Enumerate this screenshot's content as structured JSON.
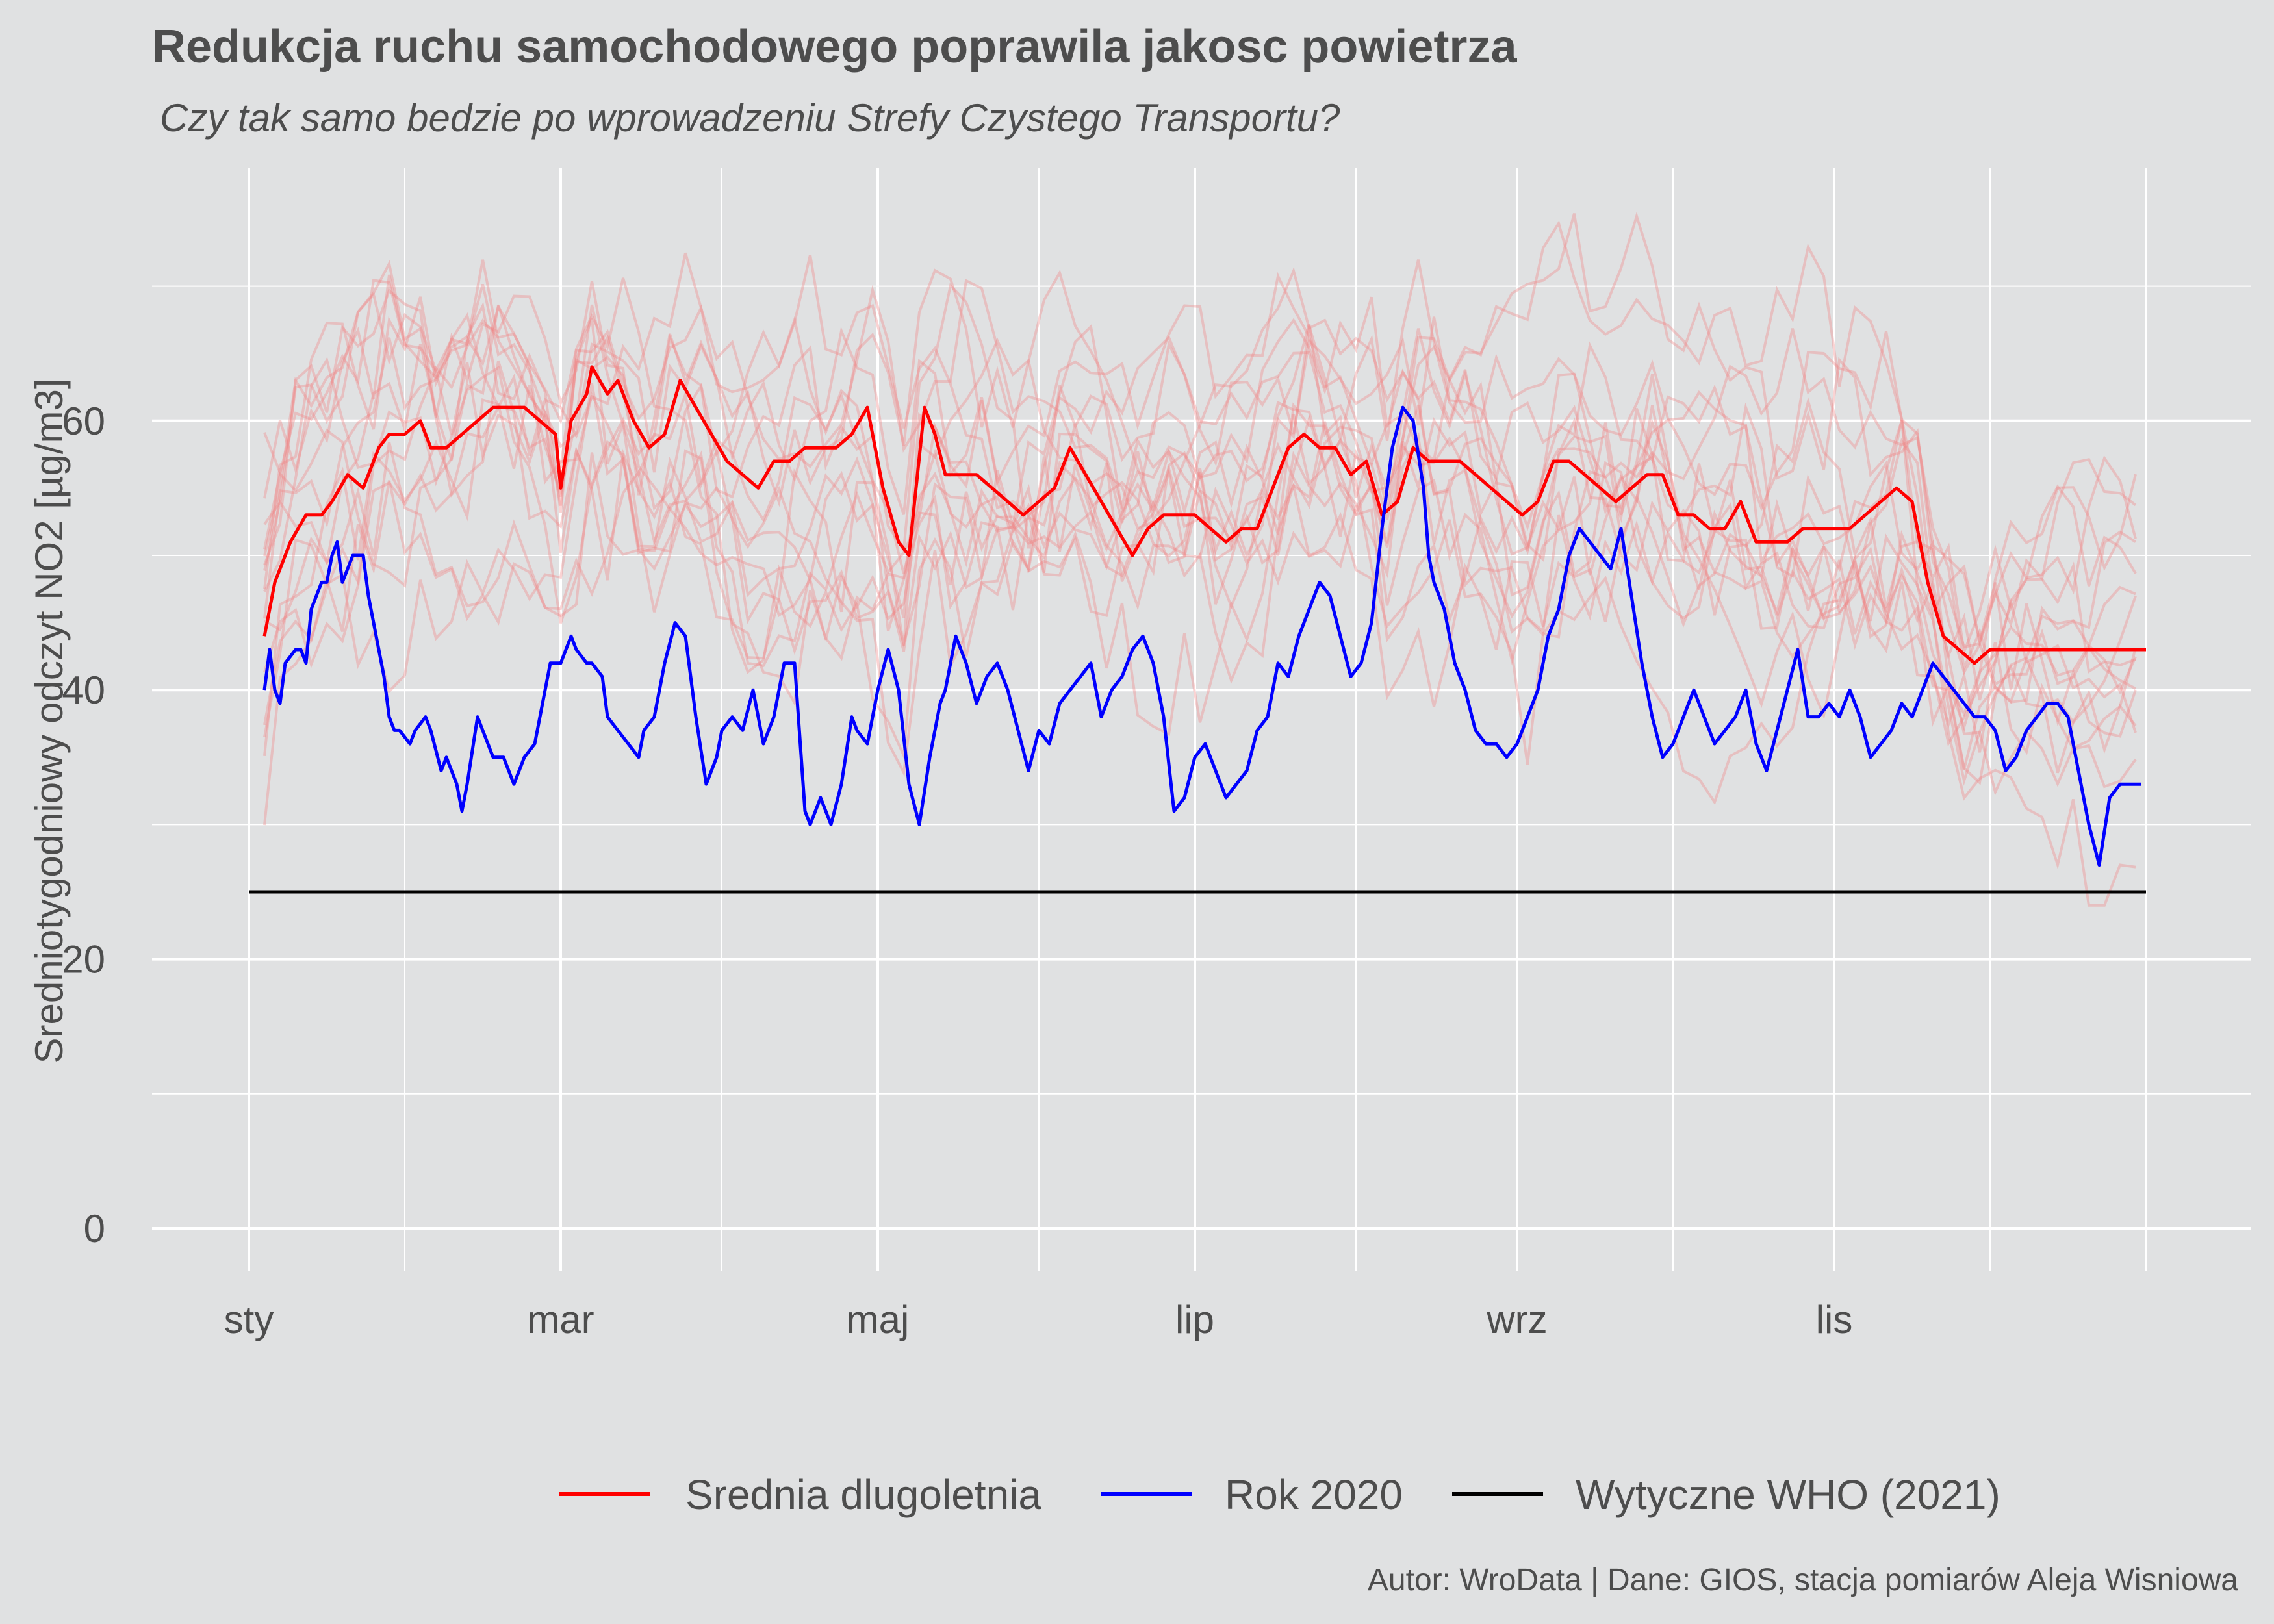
{
  "chart_data": {
    "type": "line",
    "title": "Redukcja ruchu samochodowego poprawila jakosc powietrza",
    "subtitle": "Czy tak samo bedzie po wprowadzeniu Strefy Czystego Transportu?",
    "ylabel": "Sredniotygodniowy odczyt NO2 [µg/m3]",
    "xlabel": "",
    "caption": "Autor: WroData | Dane: GIOS, stacja pomiarów Aleja Wisniowa",
    "x_unit": "day of year",
    "xlim": [
      1,
      366
    ],
    "ylim": [
      -3,
      79
    ],
    "y_ticks": [
      0,
      20,
      40,
      60
    ],
    "x_tick_labels": [
      {
        "label": "sty",
        "day": 1
      },
      {
        "label": "mar",
        "day": 61
      },
      {
        "label": "maj",
        "day": 122
      },
      {
        "label": "lip",
        "day": 183
      },
      {
        "label": "wrz",
        "day": 245
      },
      {
        "label": "lis",
        "day": 306
      }
    ],
    "grid": true,
    "legend_position": "bottom",
    "legend": [
      "Srednia dlugoletnia",
      "Rok 2020",
      "Wytyczne WHO (2021)"
    ],
    "colors": {
      "background": "#e0e1e2",
      "grid": "#ffffff",
      "mean": "#ff0000",
      "year2020": "#0000ff",
      "who": "#000000",
      "years": "#f08080"
    },
    "series": [
      {
        "name": "Srednia dlugoletnia",
        "color": "#ff0000",
        "x": [
          4,
          6,
          9,
          12,
          15,
          17,
          20,
          23,
          26,
          28,
          31,
          34,
          36,
          39,
          42,
          45,
          48,
          51,
          54,
          57,
          60,
          61,
          63,
          66,
          67,
          70,
          72,
          75,
          78,
          81,
          84,
          87,
          90,
          93,
          96,
          99,
          102,
          105,
          108,
          111,
          114,
          117,
          120,
          123,
          126,
          128,
          131,
          133,
          135,
          138,
          141,
          144,
          147,
          150,
          153,
          156,
          159,
          162,
          165,
          168,
          171,
          174,
          177,
          180,
          183,
          186,
          189,
          192,
          195,
          198,
          201,
          204,
          207,
          210,
          213,
          216,
          219,
          222,
          225,
          228,
          231,
          234,
          237,
          240,
          243,
          246,
          249,
          252,
          255,
          258,
          261,
          264,
          267,
          270,
          273,
          276,
          279,
          282,
          285,
          288,
          291,
          294,
          297,
          300,
          303,
          306,
          309,
          312,
          315,
          318,
          321,
          324,
          327,
          330,
          333,
          336,
          339,
          342,
          345,
          348,
          351,
          354,
          357,
          360,
          363,
          366
        ],
        "values": [
          44,
          48,
          51,
          53,
          53,
          54,
          56,
          55,
          58,
          59,
          59,
          60,
          58,
          58,
          59,
          60,
          61,
          61,
          61,
          60,
          59,
          55,
          60,
          62,
          64,
          62,
          63,
          60,
          58,
          59,
          63,
          61,
          59,
          57,
          56,
          55,
          57,
          57,
          58,
          58,
          58,
          59,
          61,
          55,
          51,
          50,
          61,
          59,
          56,
          56,
          56,
          55,
          54,
          53,
          54,
          55,
          58,
          56,
          54,
          52,
          50,
          52,
          53,
          53,
          53,
          52,
          51,
          52,
          52,
          55,
          58,
          59,
          58,
          58,
          56,
          57,
          53,
          54,
          58,
          57,
          57,
          57,
          56,
          55,
          54,
          53,
          54,
          57,
          57,
          56,
          55,
          54,
          55,
          56,
          56,
          53,
          53,
          52,
          52,
          54,
          51,
          51,
          51,
          52,
          52,
          52,
          52,
          53,
          54,
          55,
          54,
          48,
          44,
          43,
          42,
          43,
          43,
          43,
          43,
          43,
          43,
          43,
          43,
          43,
          43,
          43
        ]
      },
      {
        "name": "Rok 2020",
        "color": "#0000ff",
        "x": [
          4,
          5,
          6,
          7,
          8,
          10,
          11,
          12,
          13,
          15,
          16,
          17,
          18,
          19,
          21,
          22,
          23,
          24,
          25,
          27,
          28,
          29,
          30,
          32,
          33,
          35,
          36,
          38,
          39,
          41,
          42,
          43,
          45,
          46,
          48,
          50,
          52,
          54,
          56,
          57,
          59,
          61,
          63,
          64,
          66,
          67,
          69,
          70,
          72,
          74,
          76,
          77,
          79,
          81,
          83,
          85,
          87,
          89,
          91,
          92,
          94,
          96,
          98,
          100,
          102,
          104,
          106,
          108,
          109,
          111,
          113,
          115,
          117,
          118,
          120,
          122,
          124,
          126,
          128,
          130,
          132,
          134,
          135,
          137,
          139,
          141,
          143,
          145,
          147,
          149,
          151,
          153,
          155,
          157,
          159,
          161,
          163,
          165,
          167,
          169,
          171,
          173,
          175,
          177,
          179,
          181,
          183,
          185,
          187,
          189,
          191,
          193,
          195,
          197,
          199,
          201,
          203,
          205,
          207,
          209,
          211,
          213,
          215,
          217,
          219,
          221,
          223,
          225,
          227,
          228,
          229,
          231,
          233,
          235,
          237,
          239,
          241,
          243,
          245,
          247,
          249,
          251,
          253,
          255,
          257,
          259,
          261,
          263,
          265,
          267,
          269,
          271,
          273,
          275,
          277,
          279,
          281,
          283,
          285,
          287,
          289,
          291,
          293,
          295,
          297,
          299,
          301,
          303,
          305,
          307,
          309,
          311,
          313,
          315,
          317,
          319,
          321,
          323,
          325,
          327,
          329,
          331,
          333,
          335,
          337,
          339,
          341,
          343,
          345,
          347,
          349,
          351,
          353,
          355,
          357,
          359,
          361,
          363,
          365
        ],
        "values": [
          40,
          43,
          40,
          39,
          42,
          43,
          43,
          42,
          46,
          48,
          48,
          50,
          51,
          48,
          50,
          50,
          50,
          47,
          45,
          41,
          38,
          37,
          37,
          36,
          37,
          38,
          37,
          34,
          35,
          33,
          31,
          33,
          38,
          37,
          35,
          35,
          33,
          35,
          36,
          38,
          42,
          42,
          44,
          43,
          42,
          42,
          41,
          38,
          37,
          36,
          35,
          37,
          38,
          42,
          45,
          44,
          38,
          33,
          35,
          37,
          38,
          37,
          40,
          36,
          38,
          42,
          42,
          31,
          30,
          32,
          30,
          33,
          38,
          37,
          36,
          40,
          43,
          40,
          33,
          30,
          35,
          39,
          40,
          44,
          42,
          39,
          41,
          42,
          40,
          37,
          34,
          37,
          36,
          39,
          40,
          41,
          42,
          38,
          40,
          41,
          43,
          44,
          42,
          38,
          31,
          32,
          35,
          36,
          34,
          32,
          33,
          34,
          37,
          38,
          42,
          41,
          44,
          46,
          48,
          47,
          44,
          41,
          42,
          45,
          52,
          58,
          61,
          60,
          55,
          50,
          48,
          46,
          42,
          40,
          37,
          36,
          36,
          35,
          36,
          38,
          40,
          44,
          46,
          50,
          52,
          51,
          50,
          49,
          52,
          47,
          42,
          38,
          35,
          36,
          38,
          40,
          38,
          36,
          37,
          38,
          40,
          36,
          34,
          37,
          40,
          43,
          38,
          38,
          39,
          38,
          40,
          38,
          35,
          36,
          37,
          39,
          38,
          40,
          42,
          41,
          40,
          39,
          38,
          38,
          37,
          34,
          35,
          37,
          38,
          39,
          39,
          38,
          34,
          30,
          27,
          32,
          33,
          33,
          33
        ]
      },
      {
        "name": "Wytyczne WHO (2021)",
        "color": "#000000",
        "x": [
          1,
          366
        ],
        "values": [
          25,
          25
        ]
      }
    ],
    "background_series_count": 16
  }
}
